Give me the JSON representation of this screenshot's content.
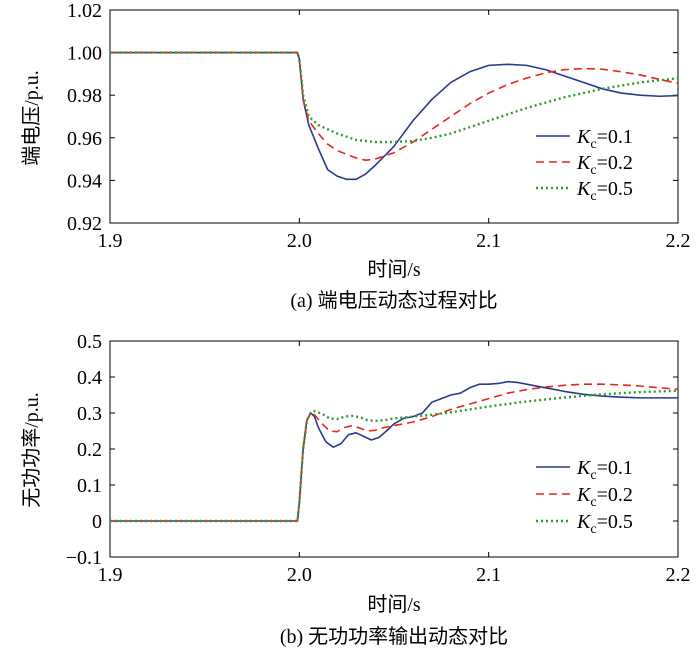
{
  "chart_data": [
    {
      "id": "a",
      "type": "line",
      "caption": "(a)  端电压动态过程对比",
      "xlabel": "时间/s",
      "ylabel": "端电压/p.u.",
      "xlim": [
        1.9,
        2.2
      ],
      "ylim": [
        0.92,
        1.02
      ],
      "xticks": [
        "1.9",
        "2.0",
        "2.1",
        "2.2"
      ],
      "yticks": [
        "0.92",
        "0.94",
        "0.96",
        "0.98",
        "1.00",
        "1.02"
      ],
      "grid": false,
      "legend_position": "right",
      "series": [
        {
          "name": "Kc=0.1",
          "label_main": "K",
          "label_sub": "c",
          "label_rest": "=0.1",
          "color": "#2a3a8c",
          "dash": "solid",
          "points": [
            [
              1.9,
              1.0
            ],
            [
              1.997,
              1.0
            ],
            [
              1.999,
              1.0
            ],
            [
              2.0,
              0.997
            ],
            [
              2.002,
              0.978
            ],
            [
              2.005,
              0.966
            ],
            [
              2.01,
              0.955
            ],
            [
              2.015,
              0.945
            ],
            [
              2.02,
              0.942
            ],
            [
              2.025,
              0.9405
            ],
            [
              2.03,
              0.9405
            ],
            [
              2.035,
              0.943
            ],
            [
              2.04,
              0.947
            ],
            [
              2.05,
              0.956
            ],
            [
              2.06,
              0.968
            ],
            [
              2.07,
              0.978
            ],
            [
              2.08,
              0.986
            ],
            [
              2.09,
              0.991
            ],
            [
              2.1,
              0.994
            ],
            [
              2.11,
              0.9945
            ],
            [
              2.12,
              0.994
            ],
            [
              2.13,
              0.992
            ],
            [
              2.14,
              0.989
            ],
            [
              2.15,
              0.986
            ],
            [
              2.16,
              0.983
            ],
            [
              2.17,
              0.981
            ],
            [
              2.18,
              0.98
            ],
            [
              2.19,
              0.9795
            ],
            [
              2.2,
              0.9798
            ]
          ]
        },
        {
          "name": "Kc=0.2",
          "label_main": "K",
          "label_sub": "c",
          "label_rest": "=0.2",
          "color": "#e8241c",
          "dash": "8,5",
          "points": [
            [
              1.9,
              1.0
            ],
            [
              1.997,
              1.0
            ],
            [
              1.999,
              1.0
            ],
            [
              2.0,
              0.997
            ],
            [
              2.002,
              0.978
            ],
            [
              2.005,
              0.968
            ],
            [
              2.01,
              0.962
            ],
            [
              2.015,
              0.957
            ],
            [
              2.02,
              0.954
            ],
            [
              2.03,
              0.9505
            ],
            [
              2.035,
              0.9495
            ],
            [
              2.04,
              0.95
            ],
            [
              2.05,
              0.953
            ],
            [
              2.06,
              0.958
            ],
            [
              2.07,
              0.964
            ],
            [
              2.08,
              0.97
            ],
            [
              2.09,
              0.976
            ],
            [
              2.1,
              0.981
            ],
            [
              2.11,
              0.985
            ],
            [
              2.12,
              0.988
            ],
            [
              2.13,
              0.9905
            ],
            [
              2.14,
              0.992
            ],
            [
              2.15,
              0.9925
            ],
            [
              2.16,
              0.9922
            ],
            [
              2.17,
              0.991
            ],
            [
              2.18,
              0.9895
            ],
            [
              2.19,
              0.9875
            ],
            [
              2.2,
              0.9855
            ]
          ]
        },
        {
          "name": "Kc=0.5",
          "label_main": "K",
          "label_sub": "c",
          "label_rest": "=0.5",
          "color": "#2e9c2e",
          "dash": "2,3",
          "points": [
            [
              1.9,
              1.0
            ],
            [
              1.997,
              1.0
            ],
            [
              1.999,
              1.0
            ],
            [
              2.0,
              0.997
            ],
            [
              2.002,
              0.98
            ],
            [
              2.005,
              0.97
            ],
            [
              2.01,
              0.966
            ],
            [
              2.02,
              0.962
            ],
            [
              2.03,
              0.959
            ],
            [
              2.04,
              0.958
            ],
            [
              2.05,
              0.958
            ],
            [
              2.06,
              0.9585
            ],
            [
              2.07,
              0.96
            ],
            [
              2.08,
              0.962
            ],
            [
              2.09,
              0.965
            ],
            [
              2.1,
              0.968
            ],
            [
              2.12,
              0.974
            ],
            [
              2.14,
              0.979
            ],
            [
              2.16,
              0.983
            ],
            [
              2.18,
              0.986
            ],
            [
              2.2,
              0.988
            ]
          ]
        }
      ]
    },
    {
      "id": "b",
      "type": "line",
      "caption": "(b)  无功功率输出动态对比",
      "xlabel": "时间/s",
      "ylabel": "无功功率/p.u.",
      "xlim": [
        1.9,
        2.2
      ],
      "ylim": [
        -0.1,
        0.5
      ],
      "xticks": [
        "1.9",
        "2.0",
        "2.1",
        "2.2"
      ],
      "yticks": [
        "−0.1",
        "0",
        "0.1",
        "0.2",
        "0.3",
        "0.4",
        "0.5"
      ],
      "grid": false,
      "legend_position": "right",
      "series": [
        {
          "name": "Kc=0.1",
          "label_main": "K",
          "label_sub": "c",
          "label_rest": "=0.1",
          "color": "#2a3a8c",
          "dash": "solid",
          "points": [
            [
              1.9,
              0.0
            ],
            [
              1.999,
              0.0
            ],
            [
              2.0,
              0.05
            ],
            [
              2.002,
              0.2
            ],
            [
              2.004,
              0.28
            ],
            [
              2.006,
              0.3
            ],
            [
              2.008,
              0.29
            ],
            [
              2.01,
              0.26
            ],
            [
              2.014,
              0.22
            ],
            [
              2.018,
              0.205
            ],
            [
              2.022,
              0.215
            ],
            [
              2.026,
              0.24
            ],
            [
              2.03,
              0.245
            ],
            [
              2.034,
              0.235
            ],
            [
              2.038,
              0.225
            ],
            [
              2.042,
              0.232
            ],
            [
              2.046,
              0.25
            ],
            [
              2.05,
              0.27
            ],
            [
              2.055,
              0.285
            ],
            [
              2.06,
              0.29
            ],
            [
              2.065,
              0.3
            ],
            [
              2.07,
              0.33
            ],
            [
              2.075,
              0.34
            ],
            [
              2.08,
              0.35
            ],
            [
              2.085,
              0.355
            ],
            [
              2.09,
              0.37
            ],
            [
              2.095,
              0.38
            ],
            [
              2.1,
              0.38
            ],
            [
              2.105,
              0.382
            ],
            [
              2.11,
              0.387
            ],
            [
              2.115,
              0.385
            ],
            [
              2.12,
              0.38
            ],
            [
              2.13,
              0.37
            ],
            [
              2.14,
              0.36
            ],
            [
              2.15,
              0.352
            ],
            [
              2.16,
              0.347
            ],
            [
              2.17,
              0.344
            ],
            [
              2.18,
              0.342
            ],
            [
              2.19,
              0.342
            ],
            [
              2.2,
              0.342
            ]
          ]
        },
        {
          "name": "Kc=0.2",
          "label_main": "K",
          "label_sub": "c",
          "label_rest": "=0.2",
          "color": "#e8241c",
          "dash": "8,5",
          "points": [
            [
              1.9,
              0.0
            ],
            [
              1.999,
              0.0
            ],
            [
              2.0,
              0.05
            ],
            [
              2.002,
              0.2
            ],
            [
              2.004,
              0.28
            ],
            [
              2.006,
              0.298
            ],
            [
              2.008,
              0.295
            ],
            [
              2.012,
              0.27
            ],
            [
              2.016,
              0.25
            ],
            [
              2.02,
              0.248
            ],
            [
              2.024,
              0.26
            ],
            [
              2.028,
              0.265
            ],
            [
              2.032,
              0.258
            ],
            [
              2.036,
              0.25
            ],
            [
              2.04,
              0.252
            ],
            [
              2.045,
              0.26
            ],
            [
              2.05,
              0.265
            ],
            [
              2.055,
              0.27
            ],
            [
              2.06,
              0.275
            ],
            [
              2.07,
              0.29
            ],
            [
              2.08,
              0.31
            ],
            [
              2.09,
              0.325
            ],
            [
              2.1,
              0.34
            ],
            [
              2.11,
              0.355
            ],
            [
              2.12,
              0.365
            ],
            [
              2.13,
              0.372
            ],
            [
              2.14,
              0.377
            ],
            [
              2.15,
              0.38
            ],
            [
              2.16,
              0.38
            ],
            [
              2.17,
              0.378
            ],
            [
              2.18,
              0.375
            ],
            [
              2.19,
              0.37
            ],
            [
              2.2,
              0.366
            ]
          ]
        },
        {
          "name": "Kc=0.5",
          "label_main": "K",
          "label_sub": "c",
          "label_rest": "=0.5",
          "color": "#2e9c2e",
          "dash": "2,3",
          "points": [
            [
              1.9,
              0.0
            ],
            [
              1.999,
              0.0
            ],
            [
              2.0,
              0.05
            ],
            [
              2.002,
              0.2
            ],
            [
              2.004,
              0.28
            ],
            [
              2.006,
              0.3
            ],
            [
              2.008,
              0.305
            ],
            [
              2.012,
              0.298
            ],
            [
              2.016,
              0.285
            ],
            [
              2.02,
              0.283
            ],
            [
              2.024,
              0.29
            ],
            [
              2.028,
              0.292
            ],
            [
              2.032,
              0.288
            ],
            [
              2.036,
              0.28
            ],
            [
              2.04,
              0.278
            ],
            [
              2.045,
              0.28
            ],
            [
              2.05,
              0.285
            ],
            [
              2.06,
              0.29
            ],
            [
              2.07,
              0.295
            ],
            [
              2.08,
              0.302
            ],
            [
              2.09,
              0.31
            ],
            [
              2.1,
              0.318
            ],
            [
              2.12,
              0.332
            ],
            [
              2.14,
              0.343
            ],
            [
              2.16,
              0.352
            ],
            [
              2.18,
              0.358
            ],
            [
              2.2,
              0.362
            ]
          ]
        }
      ]
    }
  ]
}
